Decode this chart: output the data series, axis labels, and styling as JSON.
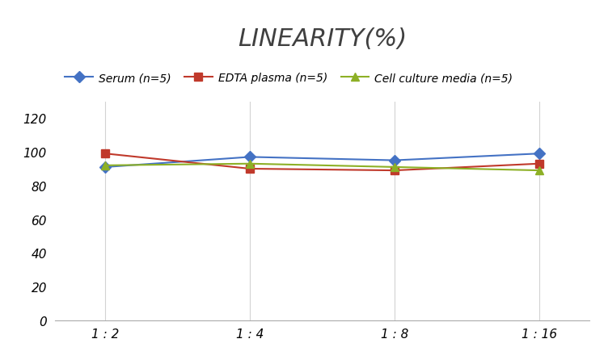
{
  "title": "LINEARITY(%)",
  "x_labels": [
    "1 : 2",
    "1 : 4",
    "1 : 8",
    "1 : 16"
  ],
  "x_positions": [
    0,
    1,
    2,
    3
  ],
  "series": [
    {
      "label": "Serum (n=5)",
      "values": [
        91,
        97,
        95,
        99
      ],
      "color": "#4472C4",
      "marker": "D",
      "markersize": 7,
      "linewidth": 1.5
    },
    {
      "label": "EDTA plasma (n=5)",
      "values": [
        99,
        90,
        89,
        93
      ],
      "color": "#C0392B",
      "marker": "s",
      "markersize": 7,
      "linewidth": 1.5
    },
    {
      "label": "Cell culture media (n=5)",
      "values": [
        92,
        93,
        91,
        89
      ],
      "color": "#8DB026",
      "marker": "^",
      "markersize": 7,
      "linewidth": 1.5
    }
  ],
  "ylim": [
    0,
    130
  ],
  "yticks": [
    0,
    20,
    40,
    60,
    80,
    100,
    120
  ],
  "grid_color": "#D3D3D3",
  "background_color": "#FFFFFF",
  "title_fontsize": 22,
  "title_fontstyle": "italic",
  "title_fontweight": "normal",
  "legend_fontsize": 10,
  "tick_fontsize": 11,
  "title_color": "#404040"
}
